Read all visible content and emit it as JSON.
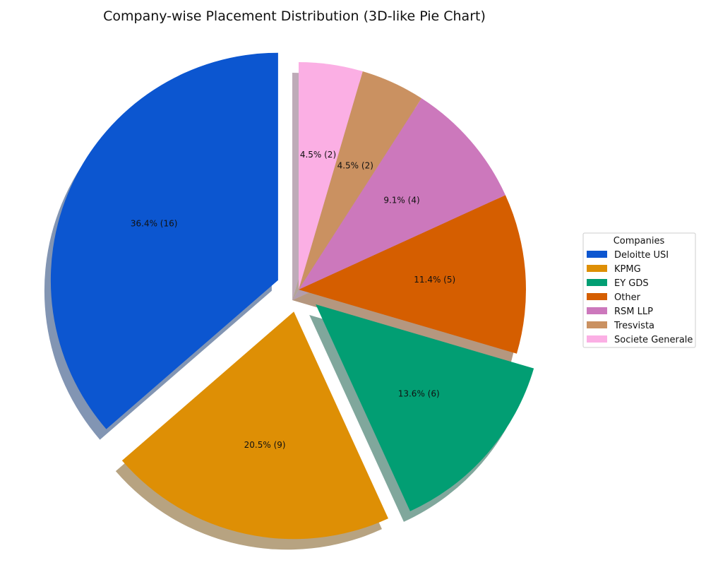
{
  "chart_data": {
    "type": "pie",
    "title": "Company-wise Placement Distribution (3D-like Pie Chart)",
    "legend_title": "Companies",
    "legend_position": "right",
    "shadow": true,
    "start_angle_deg": 90,
    "direction": "counterclockwise",
    "slices": [
      {
        "label": "Deloitte USI",
        "value": 16,
        "pct_label": "36.4% (16)",
        "color": "#0c56d0",
        "exploded": true
      },
      {
        "label": "KPMG",
        "value": 9,
        "pct_label": "20.5% (9)",
        "color": "#de8f05",
        "exploded": true
      },
      {
        "label": "EY GDS",
        "value": 6,
        "pct_label": "13.6% (6)",
        "color": "#029e73",
        "exploded": true
      },
      {
        "label": "Other",
        "value": 5,
        "pct_label": "11.4% (5)",
        "color": "#d55e00",
        "exploded": false
      },
      {
        "label": "RSM LLP",
        "value": 4,
        "pct_label": "9.1% (4)",
        "color": "#cc78bc",
        "exploded": false
      },
      {
        "label": "Tresvista",
        "value": 2,
        "pct_label": "4.5% (2)",
        "color": "#ca9161",
        "exploded": false
      },
      {
        "label": "Societe Generale",
        "value": 2,
        "pct_label": "4.5% (2)",
        "color": "#fbafe4",
        "exploded": false
      }
    ]
  }
}
